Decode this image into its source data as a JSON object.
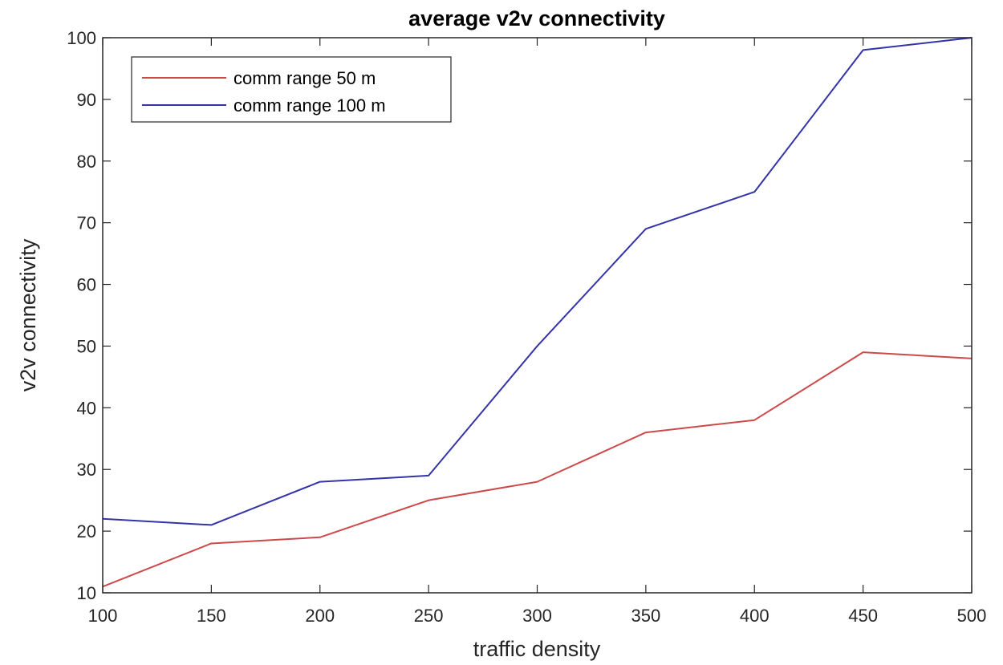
{
  "chart_data": {
    "type": "line",
    "title": "average v2v connectivity",
    "xlabel": "traffic density",
    "ylabel": "v2v connectivity",
    "xlim": [
      100,
      500
    ],
    "ylim": [
      10,
      100
    ],
    "x": [
      100,
      150,
      200,
      250,
      300,
      350,
      400,
      450,
      500
    ],
    "xticks": [
      100,
      150,
      200,
      250,
      300,
      350,
      400,
      450,
      500
    ],
    "yticks": [
      10,
      20,
      30,
      40,
      50,
      60,
      70,
      80,
      90,
      100
    ],
    "grid": false,
    "legend_position": "top-left",
    "series": [
      {
        "name": "comm range 50 m",
        "color": "#cc4a4a",
        "values": [
          11,
          18,
          19,
          25,
          28,
          36,
          38,
          49,
          48
        ]
      },
      {
        "name": "comm range 100 m",
        "color": "#3434a8",
        "values": [
          22,
          21,
          28,
          29,
          50,
          69,
          75,
          98,
          100
        ]
      }
    ]
  }
}
